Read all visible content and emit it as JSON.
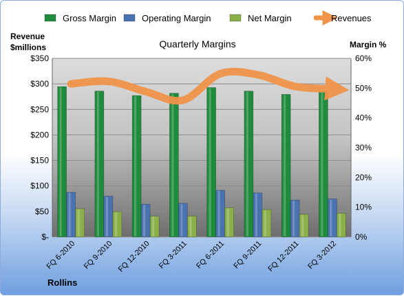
{
  "chart_data": {
    "type": "bar",
    "title": "Quarterly Margins",
    "categories": [
      "FQ 6-2010",
      "FQ 9-2010",
      "FQ 12-2010",
      "FQ 3-2011",
      "FQ 6-2011",
      "FQ 9-2011",
      "FQ 12-2011",
      "FQ 3-2012"
    ],
    "series": [
      {
        "name": "Gross Margin",
        "axis": "right",
        "color": "#1e8c3c",
        "values": [
          50.5,
          49.0,
          47.5,
          48.3,
          50.2,
          49.0,
          47.9,
          49.0
        ]
      },
      {
        "name": "Operating Margin",
        "axis": "right",
        "color": "#4a72b0",
        "values": [
          15.0,
          13.7,
          11.0,
          11.3,
          15.7,
          14.8,
          12.4,
          12.8
        ]
      },
      {
        "name": "Net Margin",
        "axis": "right",
        "color": "#8bb04a",
        "values": [
          9.5,
          8.5,
          7.0,
          7.0,
          9.8,
          9.2,
          7.6,
          8.0
        ]
      },
      {
        "name": "Revenues",
        "axis": "left",
        "type": "line",
        "color": "#f0944a",
        "values": [
          300,
          305,
          285,
          268,
          320,
          318,
          295,
          290
        ]
      }
    ],
    "y_left": {
      "label_line1": "Revenue",
      "label_line2": "$millions",
      "range": [
        0,
        350
      ],
      "ticks": [
        "$-",
        "$50",
        "$100",
        "$150",
        "$200",
        "$250",
        "$300",
        "$350"
      ]
    },
    "y_right": {
      "label": "Margin %",
      "range": [
        0,
        60
      ],
      "ticks": [
        "0%",
        "10%",
        "20%",
        "30%",
        "40%",
        "50%",
        "60%"
      ]
    },
    "grid": true,
    "legend_position": "top",
    "source": "Rollins"
  }
}
